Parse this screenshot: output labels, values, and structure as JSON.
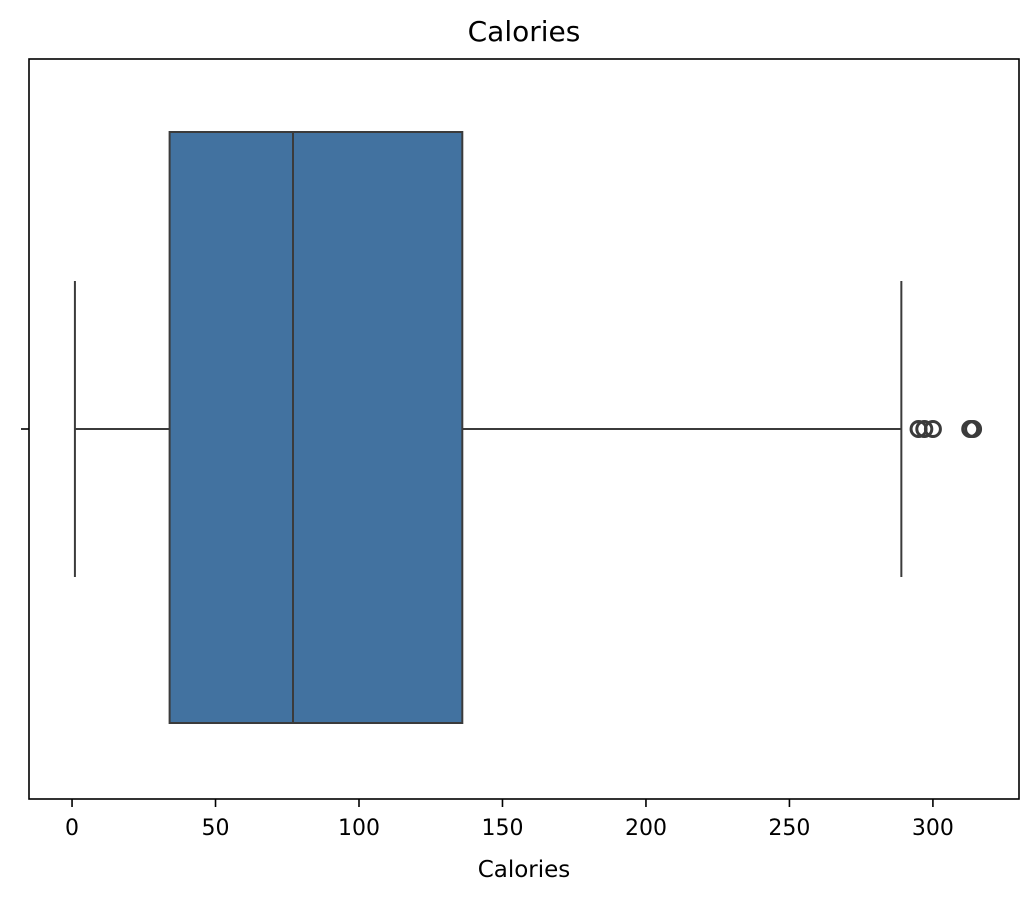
{
  "chart_data": {
    "type": "box",
    "title": "Calories",
    "xlabel": "Calories",
    "ylabel": "",
    "orientation": "horizontal",
    "xlim": [
      -15,
      330
    ],
    "xticks": [
      0,
      50,
      100,
      150,
      200,
      250,
      300
    ],
    "xtick_labels": [
      "0",
      "50",
      "100",
      "150",
      "200",
      "250",
      "300"
    ],
    "grid": false,
    "box": {
      "whisker_low": 1,
      "q1": 34,
      "median": 77,
      "q3": 136,
      "whisker_high": 289,
      "outliers": [
        295,
        297,
        300,
        313,
        314
      ]
    },
    "colors": {
      "box_fill": "#4272a0",
      "line": "#3b3b3b"
    }
  }
}
